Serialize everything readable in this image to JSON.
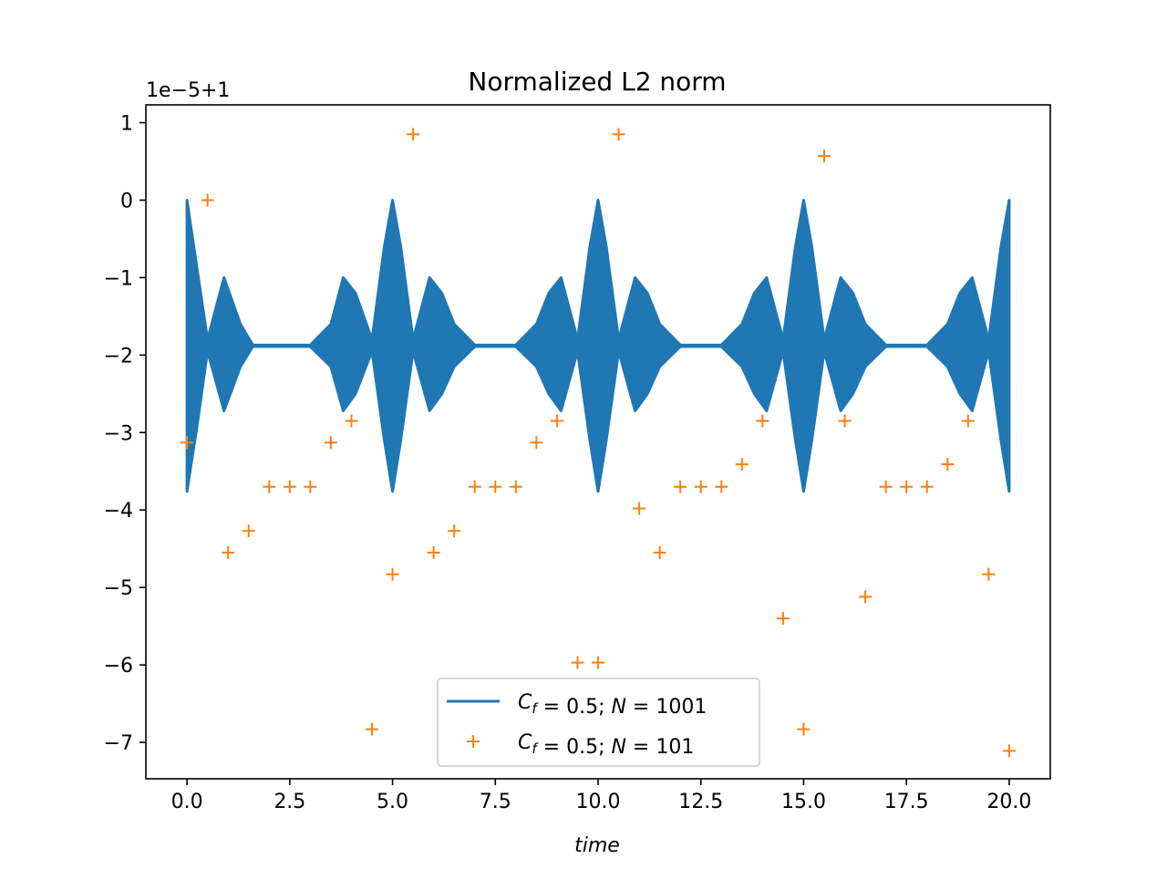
{
  "colors": {
    "series_line": "#1f77b4",
    "series_markers": "#ff7f0e",
    "axes": "#000000",
    "background": "#ffffff"
  },
  "chart_data": {
    "type": "line",
    "title": "Normalized L2 norm",
    "xlabel": "time",
    "ylabel": "",
    "y_offset_label": "1e−5+1",
    "xlim": [
      -1.0,
      21.0
    ],
    "ylim": [
      -7.47,
      1.23
    ],
    "x_ticks": [
      0.0,
      2.5,
      5.0,
      7.5,
      10.0,
      12.5,
      15.0,
      17.5,
      20.0
    ],
    "x_tick_labels": [
      "0.0",
      "2.5",
      "5.0",
      "7.5",
      "10.0",
      "12.5",
      "15.0",
      "17.5",
      "20.0"
    ],
    "y_ticks": [
      1,
      0,
      -1,
      -2,
      -3,
      -4,
      -5,
      -6,
      -7
    ],
    "y_tick_labels": [
      "1",
      "0",
      "−1",
      "−2",
      "−3",
      "−4",
      "−5",
      "−6",
      "−7"
    ],
    "grid": false,
    "legend_position": "lower center",
    "series": [
      {
        "name": "C_f = 0.5; N = 1001",
        "legend_label": {
          "cf": "C",
          "sub": "f",
          "eq1": " = 0.5;  ",
          "n": "N",
          "eq2": " = 1001"
        },
        "style": "line",
        "envelope": {
          "x": [
            0.0,
            0.25,
            0.5,
            0.9,
            1.3,
            1.6,
            2.0,
            3.0,
            3.5,
            3.8,
            4.1,
            4.5,
            4.8,
            5.0,
            5.2,
            5.5,
            5.9,
            6.2,
            6.5,
            7.0,
            8.0,
            8.5,
            8.8,
            9.1,
            9.5,
            9.8,
            10.0,
            10.2,
            10.5,
            10.9,
            11.2,
            11.5,
            12.0,
            13.0,
            13.5,
            13.8,
            14.1,
            14.5,
            14.8,
            15.0,
            15.2,
            15.5,
            15.9,
            16.2,
            16.5,
            17.0,
            18.0,
            18.5,
            18.8,
            19.1,
            19.5,
            19.8,
            20.0
          ],
          "upper": [
            0.0,
            -0.9,
            -1.8,
            -1.0,
            -1.6,
            -1.87,
            -1.87,
            -1.87,
            -1.6,
            -1.0,
            -1.2,
            -1.8,
            -0.6,
            0.0,
            -0.6,
            -1.8,
            -1.0,
            -1.2,
            -1.6,
            -1.87,
            -1.87,
            -1.6,
            -1.2,
            -1.0,
            -1.8,
            -0.6,
            0.0,
            -0.6,
            -1.8,
            -1.0,
            -1.2,
            -1.6,
            -1.87,
            -1.87,
            -1.6,
            -1.2,
            -1.0,
            -1.8,
            -0.6,
            0.0,
            -0.6,
            -1.8,
            -1.0,
            -1.2,
            -1.6,
            -1.87,
            -1.87,
            -1.6,
            -1.2,
            -1.0,
            -1.8,
            -0.6,
            0.0
          ],
          "lower": [
            -3.76,
            -2.9,
            -1.95,
            -2.72,
            -2.15,
            -1.89,
            -1.89,
            -1.89,
            -2.15,
            -2.72,
            -2.5,
            -1.95,
            -3.1,
            -3.76,
            -3.1,
            -1.95,
            -2.72,
            -2.5,
            -2.15,
            -1.89,
            -1.89,
            -2.15,
            -2.5,
            -2.72,
            -1.95,
            -3.1,
            -3.76,
            -3.1,
            -1.95,
            -2.72,
            -2.5,
            -2.15,
            -1.89,
            -1.89,
            -2.15,
            -2.5,
            -2.72,
            -1.95,
            -3.1,
            -3.76,
            -3.1,
            -1.95,
            -2.72,
            -2.5,
            -2.15,
            -1.89,
            -1.89,
            -2.15,
            -2.5,
            -2.72,
            -1.95,
            -3.1,
            -3.76
          ]
        }
      },
      {
        "name": "C_f = 0.5; N = 101",
        "legend_label": {
          "cf": "C",
          "sub": "f",
          "eq1": " = 0.5;  ",
          "n": "N",
          "eq2": " = 101"
        },
        "style": "markers",
        "x": [
          0.0,
          0.5,
          1.0,
          1.5,
          2.0,
          2.5,
          3.0,
          3.5,
          4.0,
          4.5,
          5.0,
          5.5,
          6.0,
          6.5,
          7.0,
          7.5,
          8.0,
          8.5,
          9.0,
          9.5,
          10.0,
          10.5,
          11.0,
          11.5,
          12.0,
          12.5,
          13.0,
          13.5,
          14.0,
          14.5,
          15.0,
          15.5,
          16.0,
          16.5,
          17.0,
          17.5,
          18.0,
          18.5,
          19.0,
          19.5,
          20.0
        ],
        "y": [
          -3.13,
          0.0,
          -4.55,
          -4.27,
          -3.7,
          -3.7,
          -3.7,
          -3.13,
          -2.85,
          -6.83,
          -4.83,
          0.85,
          -4.55,
          -4.27,
          -3.7,
          -3.7,
          -3.7,
          -3.13,
          -2.85,
          -5.97,
          -5.97,
          0.85,
          -3.98,
          -4.55,
          -3.7,
          -3.7,
          -3.7,
          -3.41,
          -2.85,
          -5.4,
          -6.83,
          0.57,
          -2.85,
          -5.12,
          -3.7,
          -3.7,
          -3.7,
          -3.41,
          -2.85,
          -4.83,
          -7.11
        ]
      }
    ]
  }
}
